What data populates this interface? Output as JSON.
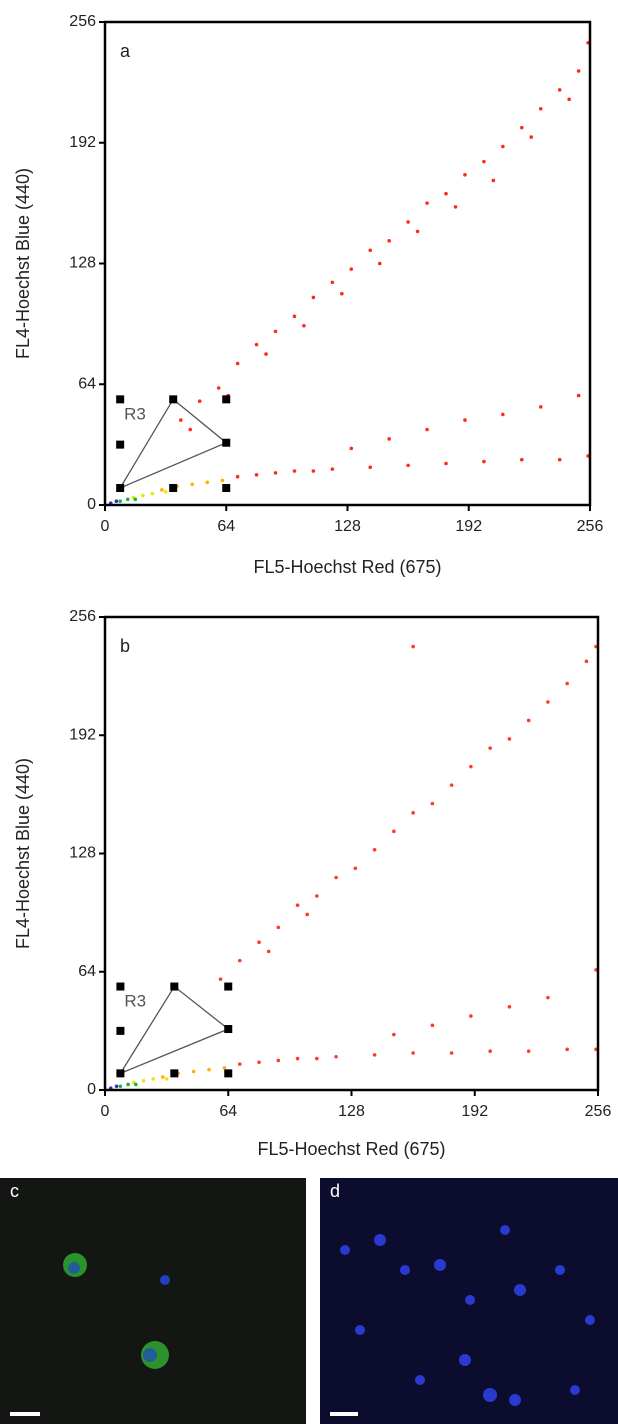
{
  "chart_data": [
    {
      "type": "scatter",
      "annotation": "a",
      "xlabel": "FL5-Hoechst Red (675)",
      "ylabel": "FL4-Hoechst Blue (440)",
      "xlim": [
        0,
        256
      ],
      "ylim": [
        0,
        256
      ],
      "xticks": [
        0,
        64,
        128,
        192,
        256
      ],
      "yticks": [
        0,
        64,
        128,
        192,
        256
      ],
      "series": [
        {
          "color": "#ff2a1a",
          "x": [
            40,
            50,
            60,
            70,
            80,
            90,
            100,
            110,
            120,
            130,
            140,
            150,
            160,
            170,
            180,
            190,
            200,
            210,
            220,
            230,
            240,
            250,
            255,
            45,
            65,
            85,
            105,
            125,
            145,
            165,
            185,
            205,
            225,
            245,
            130,
            150,
            170,
            190,
            210,
            230,
            250,
            70,
            80,
            90,
            100,
            110,
            120,
            140,
            160,
            180,
            200,
            220,
            240,
            255
          ],
          "values": [
            45,
            55,
            62,
            75,
            85,
            92,
            100,
            110,
            118,
            125,
            135,
            140,
            150,
            160,
            165,
            175,
            182,
            190,
            200,
            210,
            220,
            230,
            245,
            40,
            58,
            80,
            95,
            112,
            128,
            145,
            158,
            172,
            195,
            215,
            30,
            35,
            40,
            45,
            48,
            52,
            58,
            15,
            16,
            17,
            18,
            18,
            19,
            20,
            21,
            22,
            23,
            24,
            24,
            26
          ]
        },
        {
          "color": "#ffb000",
          "x": [
            30,
            38,
            46,
            54,
            62
          ],
          "values": [
            8,
            10,
            11,
            12,
            13
          ]
        },
        {
          "color": "#e8e800",
          "x": [
            15,
            20,
            25,
            32
          ],
          "values": [
            4,
            5,
            6,
            7
          ]
        },
        {
          "color": "#20b040",
          "x": [
            8,
            12,
            16
          ],
          "values": [
            2,
            3,
            3
          ]
        },
        {
          "color": "#3030c0",
          "x": [
            3,
            6
          ],
          "values": [
            1,
            2
          ]
        }
      ],
      "gate": {
        "label": "R3",
        "x": [
          8,
          36,
          64
        ],
        "y": [
          9,
          56,
          33
        ]
      },
      "handles": {
        "x": [
          8,
          8,
          8,
          36,
          64,
          64,
          36,
          64
        ],
        "y": [
          56,
          32,
          9,
          56,
          56,
          33,
          9,
          9
        ]
      }
    },
    {
      "type": "scatter",
      "annotation": "b",
      "xlabel": "FL5-Hoechst Red (675)",
      "ylabel": "FL4-Hoechst Blue (440)",
      "xlim": [
        0,
        256
      ],
      "ylim": [
        0,
        256
      ],
      "xticks": [
        0,
        64,
        128,
        192,
        256
      ],
      "yticks": [
        0,
        64,
        128,
        192,
        256
      ],
      "series": [
        {
          "color": "#ff3a2a",
          "x": [
            60,
            70,
            80,
            90,
            100,
            110,
            120,
            140,
            160,
            180,
            200,
            220,
            240,
            255,
            85,
            105,
            130,
            150,
            170,
            190,
            210,
            230,
            250,
            150,
            170,
            190,
            210,
            230,
            255,
            70,
            80,
            90,
            100,
            110,
            120,
            140,
            160,
            180,
            200,
            220,
            240,
            255,
            160
          ],
          "values": [
            60,
            70,
            80,
            88,
            100,
            105,
            115,
            130,
            150,
            165,
            185,
            200,
            220,
            240,
            75,
            95,
            120,
            140,
            155,
            175,
            190,
            210,
            232,
            30,
            35,
            40,
            45,
            50,
            65,
            14,
            15,
            16,
            17,
            17,
            18,
            19,
            20,
            20,
            21,
            21,
            22,
            22,
            240
          ]
        },
        {
          "color": "#ffb000",
          "x": [
            30,
            38,
            46,
            54,
            62
          ],
          "values": [
            7,
            9,
            10,
            11,
            12
          ]
        },
        {
          "color": "#e8e800",
          "x": [
            15,
            20,
            25,
            32
          ],
          "values": [
            4,
            5,
            6,
            6
          ]
        },
        {
          "color": "#20b040",
          "x": [
            8,
            12,
            16
          ],
          "values": [
            2,
            3,
            3
          ]
        },
        {
          "color": "#3030c0",
          "x": [
            3,
            6
          ],
          "values": [
            1,
            2
          ]
        }
      ],
      "gate": {
        "label": "R3",
        "x": [
          8,
          36,
          64
        ],
        "y": [
          9,
          56,
          33
        ]
      },
      "handles": {
        "x": [
          8,
          8,
          8,
          36,
          64,
          64,
          36,
          64
        ],
        "y": [
          56,
          32,
          9,
          56,
          56,
          33,
          9,
          9
        ]
      }
    }
  ],
  "images": [
    {
      "label": "c"
    },
    {
      "label": "d"
    }
  ]
}
